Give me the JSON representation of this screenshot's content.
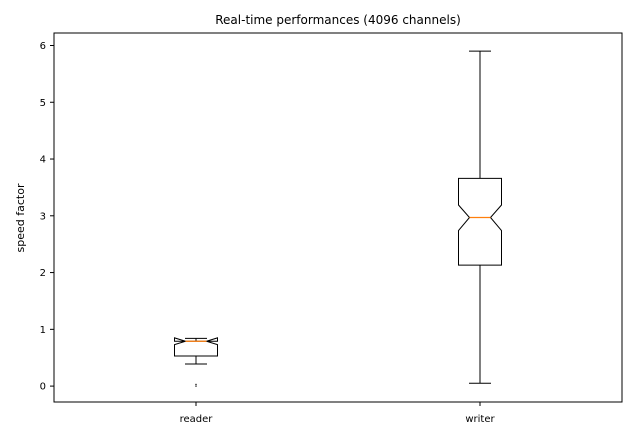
{
  "chart_data": {
    "type": "boxplot",
    "title": "Real-time performances (4096 channels)",
    "xlabel": "",
    "ylabel": "speed factor",
    "ylim": [
      -0.28,
      6.22
    ],
    "yticks": [
      0,
      1,
      2,
      3,
      4,
      5,
      6
    ],
    "grid": false,
    "notched": true,
    "categories": [
      "reader",
      "writer"
    ],
    "boxes": [
      {
        "name": "reader",
        "whisker_low": 0.39,
        "q1": 0.53,
        "median": 0.79,
        "q3": 0.79,
        "whisker_high": 0.84,
        "notch_low": 0.73,
        "notch_high": 0.85,
        "outliers": [
          0.0,
          0.03
        ]
      },
      {
        "name": "writer",
        "whisker_low": 0.05,
        "q1": 2.13,
        "median": 2.97,
        "q3": 3.66,
        "whisker_high": 5.9,
        "notch_low": 2.74,
        "notch_high": 3.19,
        "outliers": []
      }
    ],
    "colors": {
      "box": "#000000",
      "median": "#ff7f0e"
    }
  }
}
